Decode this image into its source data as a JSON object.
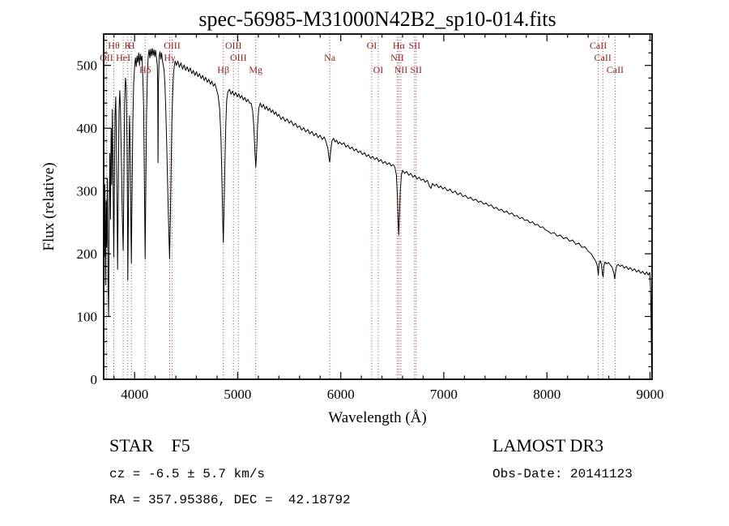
{
  "footer": {
    "object_type": "STAR    F5",
    "cz": "cz = -6.5 ± 5.7 km/s",
    "radec": "RA = 357.95386, DEC =  42.18792",
    "survey": "LAMOST DR3",
    "obs_date": "Obs-Date: 20141123"
  },
  "chart_data": {
    "type": "line",
    "title": "spec-56985-M31000N42B2_sp10-014.fits",
    "xlabel": "Wavelength (Å)",
    "ylabel": "Flux (relative)",
    "xlim": [
      3700,
      9020
    ],
    "ylim": [
      0,
      550
    ],
    "xticks": [
      4000,
      5000,
      6000,
      7000,
      8000,
      9000
    ],
    "x_minor_step": 200,
    "yticks": [
      0,
      100,
      200,
      300,
      400,
      500
    ],
    "y_minor_step": 20,
    "grid": false,
    "legend": false,
    "line_color": "#000000",
    "marker_line_color": "#a33b3b",
    "marker_label_color": "#8b2323",
    "spectral_lines": [
      {
        "label": "Hθ",
        "wavelength": 3798,
        "row": 1
      },
      {
        "label": "K",
        "wavelength": 3934,
        "row": 1
      },
      {
        "label": "H",
        "wavelength": 3969,
        "row": 1
      },
      {
        "label": "OIII",
        "wavelength": 4363,
        "row": 1
      },
      {
        "label": "OIII",
        "wavelength": 4959,
        "row": 1
      },
      {
        "label": "OI",
        "wavelength": 6300,
        "row": 1
      },
      {
        "label": "Hα",
        "wavelength": 6563,
        "row": 1
      },
      {
        "label": "SII",
        "wavelength": 6716,
        "row": 1
      },
      {
        "label": "CaII",
        "wavelength": 8498,
        "row": 1
      },
      {
        "label": "OII",
        "wavelength": 3727,
        "row": 2
      },
      {
        "label": "HeI",
        "wavelength": 3889,
        "row": 2
      },
      {
        "label": "Hγ",
        "wavelength": 4340,
        "row": 2
      },
      {
        "label": "OIII",
        "wavelength": 5007,
        "row": 2
      },
      {
        "label": "Na",
        "wavelength": 5893,
        "row": 2
      },
      {
        "label": "NII",
        "wavelength": 6548,
        "row": 2
      },
      {
        "label": "CaII",
        "wavelength": 8542,
        "row": 2
      },
      {
        "label": "Hδ",
        "wavelength": 4102,
        "row": 3
      },
      {
        "label": "Hβ",
        "wavelength": 4861,
        "row": 3
      },
      {
        "label": "Mg",
        "wavelength": 5175,
        "row": 3
      },
      {
        "label": "OI",
        "wavelength": 6363,
        "row": 3
      },
      {
        "label": "NII",
        "wavelength": 6583,
        "row": 3
      },
      {
        "label": "SII",
        "wavelength": 6731,
        "row": 3
      },
      {
        "label": "CaII",
        "wavelength": 8662,
        "row": 3
      }
    ],
    "spectrum": [
      [
        3700,
        258
      ],
      [
        3706,
        195
      ],
      [
        3712,
        310
      ],
      [
        3718,
        150
      ],
      [
        3724,
        285
      ],
      [
        3730,
        210
      ],
      [
        3736,
        320
      ],
      [
        3742,
        160
      ],
      [
        3748,
        100
      ],
      [
        3754,
        280
      ],
      [
        3760,
        360
      ],
      [
        3766,
        255
      ],
      [
        3772,
        400
      ],
      [
        3778,
        310
      ],
      [
        3784,
        430
      ],
      [
        3790,
        340
      ],
      [
        3795,
        240
      ],
      [
        3798,
        195
      ],
      [
        3803,
        290
      ],
      [
        3810,
        420
      ],
      [
        3817,
        450
      ],
      [
        3823,
        380
      ],
      [
        3829,
        290
      ],
      [
        3835,
        175
      ],
      [
        3841,
        280
      ],
      [
        3849,
        430
      ],
      [
        3856,
        460
      ],
      [
        3863,
        430
      ],
      [
        3871,
        350
      ],
      [
        3880,
        265
      ],
      [
        3889,
        205
      ],
      [
        3896,
        310
      ],
      [
        3903,
        440
      ],
      [
        3911,
        480
      ],
      [
        3919,
        465
      ],
      [
        3926,
        380
      ],
      [
        3931,
        270
      ],
      [
        3934,
        158
      ],
      [
        3939,
        250
      ],
      [
        3945,
        360
      ],
      [
        3951,
        420
      ],
      [
        3956,
        380
      ],
      [
        3961,
        300
      ],
      [
        3965,
        235
      ],
      [
        3969,
        185
      ],
      [
        3975,
        290
      ],
      [
        3983,
        410
      ],
      [
        3991,
        470
      ],
      [
        4000,
        498
      ],
      [
        4008,
        512
      ],
      [
        4016,
        498
      ],
      [
        4024,
        515
      ],
      [
        4032,
        505
      ],
      [
        4040,
        520
      ],
      [
        4048,
        500
      ],
      [
        4056,
        518
      ],
      [
        4064,
        508
      ],
      [
        4072,
        515
      ],
      [
        4080,
        478
      ],
      [
        4088,
        430
      ],
      [
        4095,
        310
      ],
      [
        4102,
        192
      ],
      [
        4109,
        300
      ],
      [
        4116,
        420
      ],
      [
        4124,
        488
      ],
      [
        4132,
        515
      ],
      [
        4140,
        525
      ],
      [
        4148,
        512
      ],
      [
        4156,
        526
      ],
      [
        4164,
        515
      ],
      [
        4172,
        527
      ],
      [
        4180,
        516
      ],
      [
        4188,
        525
      ],
      [
        4196,
        514
      ],
      [
        4204,
        524
      ],
      [
        4212,
        512
      ],
      [
        4220,
        500
      ],
      [
        4224,
        465
      ],
      [
        4227,
        345
      ],
      [
        4231,
        470
      ],
      [
        4238,
        515
      ],
      [
        4246,
        522
      ],
      [
        4254,
        510
      ],
      [
        4262,
        520
      ],
      [
        4270,
        508
      ],
      [
        4278,
        500
      ],
      [
        4286,
        492
      ],
      [
        4294,
        470
      ],
      [
        4302,
        432
      ],
      [
        4310,
        385
      ],
      [
        4318,
        330
      ],
      [
        4326,
        270
      ],
      [
        4333,
        225
      ],
      [
        4340,
        192
      ],
      [
        4347,
        255
      ],
      [
        4354,
        330
      ],
      [
        4362,
        410
      ],
      [
        4370,
        460
      ],
      [
        4378,
        488
      ],
      [
        4386,
        500
      ],
      [
        4394,
        507
      ],
      [
        4405,
        500
      ],
      [
        4420,
        507
      ],
      [
        4435,
        497
      ],
      [
        4450,
        504
      ],
      [
        4465,
        494
      ],
      [
        4480,
        501
      ],
      [
        4495,
        492
      ],
      [
        4510,
        498
      ],
      [
        4525,
        490
      ],
      [
        4540,
        496
      ],
      [
        4555,
        487
      ],
      [
        4570,
        492
      ],
      [
        4585,
        484
      ],
      [
        4600,
        490
      ],
      [
        4615,
        482
      ],
      [
        4630,
        487
      ],
      [
        4645,
        479
      ],
      [
        4660,
        484
      ],
      [
        4675,
        476
      ],
      [
        4690,
        481
      ],
      [
        4705,
        473
      ],
      [
        4720,
        478
      ],
      [
        4735,
        470
      ],
      [
        4750,
        475
      ],
      [
        4765,
        467
      ],
      [
        4780,
        471
      ],
      [
        4795,
        462
      ],
      [
        4810,
        452
      ],
      [
        4825,
        430
      ],
      [
        4838,
        385
      ],
      [
        4848,
        310
      ],
      [
        4855,
        250
      ],
      [
        4861,
        218
      ],
      [
        4868,
        272
      ],
      [
        4876,
        345
      ],
      [
        4885,
        408
      ],
      [
        4894,
        445
      ],
      [
        4905,
        458
      ],
      [
        4920,
        462
      ],
      [
        4935,
        454
      ],
      [
        4950,
        459
      ],
      [
        4965,
        452
      ],
      [
        4980,
        457
      ],
      [
        4995,
        450
      ],
      [
        5010,
        455
      ],
      [
        5025,
        448
      ],
      [
        5040,
        452
      ],
      [
        5055,
        445
      ],
      [
        5070,
        449
      ],
      [
        5085,
        442
      ],
      [
        5100,
        446
      ],
      [
        5115,
        440
      ],
      [
        5130,
        440
      ],
      [
        5145,
        428
      ],
      [
        5158,
        400
      ],
      [
        5168,
        360
      ],
      [
        5176,
        338
      ],
      [
        5184,
        362
      ],
      [
        5193,
        405
      ],
      [
        5205,
        432
      ],
      [
        5220,
        440
      ],
      [
        5235,
        433
      ],
      [
        5250,
        438
      ],
      [
        5265,
        430
      ],
      [
        5280,
        435
      ],
      [
        5295,
        428
      ],
      [
        5310,
        432
      ],
      [
        5325,
        425
      ],
      [
        5340,
        429
      ],
      [
        5355,
        422
      ],
      [
        5370,
        426
      ],
      [
        5385,
        419
      ],
      [
        5400,
        422
      ],
      [
        5420,
        414
      ],
      [
        5440,
        418
      ],
      [
        5460,
        411
      ],
      [
        5480,
        415
      ],
      [
        5500,
        408
      ],
      [
        5520,
        412
      ],
      [
        5540,
        404
      ],
      [
        5560,
        408
      ],
      [
        5580,
        401
      ],
      [
        5600,
        404
      ],
      [
        5620,
        397
      ],
      [
        5640,
        401
      ],
      [
        5660,
        394
      ],
      [
        5680,
        398
      ],
      [
        5700,
        391
      ],
      [
        5720,
        395
      ],
      [
        5740,
        388
      ],
      [
        5760,
        392
      ],
      [
        5780,
        385
      ],
      [
        5800,
        389
      ],
      [
        5820,
        382
      ],
      [
        5840,
        386
      ],
      [
        5858,
        378
      ],
      [
        5874,
        368
      ],
      [
        5886,
        352
      ],
      [
        5893,
        346
      ],
      [
        5901,
        362
      ],
      [
        5915,
        380
      ],
      [
        5930,
        384
      ],
      [
        5945,
        378
      ],
      [
        5960,
        381
      ],
      [
        5975,
        375
      ],
      [
        5990,
        378
      ],
      [
        6010,
        374
      ],
      [
        6030,
        377
      ],
      [
        6050,
        370
      ],
      [
        6070,
        373
      ],
      [
        6090,
        367
      ],
      [
        6110,
        370
      ],
      [
        6130,
        364
      ],
      [
        6150,
        367
      ],
      [
        6170,
        361
      ],
      [
        6190,
        364
      ],
      [
        6210,
        358
      ],
      [
        6230,
        361
      ],
      [
        6250,
        355
      ],
      [
        6270,
        358
      ],
      [
        6290,
        352
      ],
      [
        6310,
        355
      ],
      [
        6330,
        350
      ],
      [
        6350,
        353
      ],
      [
        6370,
        347
      ],
      [
        6390,
        350
      ],
      [
        6410,
        344
      ],
      [
        6430,
        347
      ],
      [
        6450,
        342
      ],
      [
        6470,
        345
      ],
      [
        6490,
        340
      ],
      [
        6510,
        342
      ],
      [
        6525,
        338
      ],
      [
        6540,
        325
      ],
      [
        6550,
        290
      ],
      [
        6557,
        248
      ],
      [
        6563,
        230
      ],
      [
        6570,
        262
      ],
      [
        6578,
        300
      ],
      [
        6588,
        325
      ],
      [
        6600,
        333
      ],
      [
        6620,
        328
      ],
      [
        6640,
        331
      ],
      [
        6660,
        325
      ],
      [
        6680,
        328
      ],
      [
        6700,
        322
      ],
      [
        6720,
        325
      ],
      [
        6740,
        319
      ],
      [
        6760,
        322
      ],
      [
        6780,
        317
      ],
      [
        6800,
        319
      ],
      [
        6820,
        314
      ],
      [
        6840,
        317
      ],
      [
        6860,
        308
      ],
      [
        6875,
        304
      ],
      [
        6890,
        312
      ],
      [
        6910,
        308
      ],
      [
        6930,
        311
      ],
      [
        6950,
        305
      ],
      [
        6970,
        308
      ],
      [
        6990,
        303
      ],
      [
        7010,
        306
      ],
      [
        7035,
        300
      ],
      [
        7060,
        303
      ],
      [
        7085,
        297
      ],
      [
        7110,
        300
      ],
      [
        7135,
        294
      ],
      [
        7160,
        297
      ],
      [
        7185,
        291
      ],
      [
        7210,
        293
      ],
      [
        7235,
        288
      ],
      [
        7260,
        290
      ],
      [
        7285,
        285
      ],
      [
        7310,
        287
      ],
      [
        7335,
        282
      ],
      [
        7360,
        284
      ],
      [
        7385,
        279
      ],
      [
        7410,
        281
      ],
      [
        7435,
        276
      ],
      [
        7460,
        278
      ],
      [
        7485,
        272
      ],
      [
        7510,
        274
      ],
      [
        7535,
        269
      ],
      [
        7560,
        271
      ],
      [
        7585,
        266
      ],
      [
        7610,
        268
      ],
      [
        7635,
        263
      ],
      [
        7660,
        265
      ],
      [
        7685,
        260
      ],
      [
        7710,
        261
      ],
      [
        7735,
        256
      ],
      [
        7760,
        258
      ],
      [
        7785,
        253
      ],
      [
        7810,
        254
      ],
      [
        7835,
        249
      ],
      [
        7860,
        251
      ],
      [
        7885,
        246
      ],
      [
        7910,
        247
      ],
      [
        7935,
        242
      ],
      [
        7960,
        243
      ],
      [
        7985,
        238
      ],
      [
        8010,
        236
      ],
      [
        8040,
        232
      ],
      [
        8070,
        234
      ],
      [
        8100,
        228
      ],
      [
        8130,
        230
      ],
      [
        8160,
        224
      ],
      [
        8190,
        226
      ],
      [
        8220,
        220
      ],
      [
        8250,
        222
      ],
      [
        8280,
        215
      ],
      [
        8310,
        217
      ],
      [
        8340,
        210
      ],
      [
        8370,
        211
      ],
      [
        8400,
        204
      ],
      [
        8430,
        200
      ],
      [
        8455,
        193
      ],
      [
        8475,
        188
      ],
      [
        8490,
        180
      ],
      [
        8498,
        166
      ],
      [
        8506,
        184
      ],
      [
        8516,
        189
      ],
      [
        8530,
        183
      ],
      [
        8538,
        168
      ],
      [
        8545,
        163
      ],
      [
        8553,
        181
      ],
      [
        8565,
        187
      ],
      [
        8580,
        184
      ],
      [
        8598,
        186
      ],
      [
        8615,
        182
      ],
      [
        8632,
        179
      ],
      [
        8648,
        170
      ],
      [
        8658,
        160
      ],
      [
        8666,
        172
      ],
      [
        8678,
        181
      ],
      [
        8692,
        183
      ],
      [
        8710,
        180
      ],
      [
        8730,
        182
      ],
      [
        8750,
        177
      ],
      [
        8770,
        180
      ],
      [
        8790,
        175
      ],
      [
        8810,
        178
      ],
      [
        8830,
        173
      ],
      [
        8850,
        176
      ],
      [
        8870,
        171
      ],
      [
        8890,
        174
      ],
      [
        8910,
        169
      ],
      [
        8930,
        172
      ],
      [
        8950,
        167
      ],
      [
        8968,
        171
      ],
      [
        8984,
        166
      ],
      [
        8998,
        170
      ],
      [
        9004,
        150
      ],
      [
        9009,
        110
      ],
      [
        9013,
        60
      ],
      [
        9016,
        20
      ],
      [
        9018,
        8
      ]
    ]
  }
}
